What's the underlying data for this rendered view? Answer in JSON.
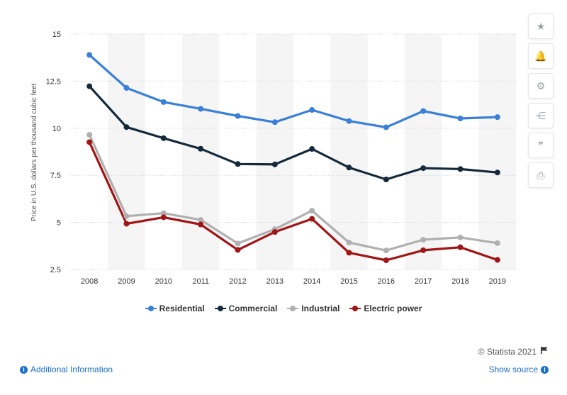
{
  "chart_data": {
    "type": "line",
    "title": "",
    "xlabel": "",
    "ylabel": "Price in U.S. dollars per thousand cubic feet",
    "categories": [
      "2008",
      "2009",
      "2010",
      "2011",
      "2012",
      "2013",
      "2014",
      "2015",
      "2016",
      "2017",
      "2018",
      "2019"
    ],
    "y_ticks": [
      "2.5",
      "5",
      "7.5",
      "10",
      "12.5",
      "15"
    ],
    "ylim": [
      2.5,
      15
    ],
    "grid": true,
    "legend_position": "bottom",
    "series": [
      {
        "name": "Residential",
        "color": "#3a80d9",
        "values": [
          13.89,
          12.14,
          11.39,
          11.03,
          10.65,
          10.32,
          10.97,
          10.38,
          10.05,
          10.91,
          10.52,
          10.59
        ]
      },
      {
        "name": "Commercial",
        "color": "#142a3b",
        "values": [
          12.23,
          10.06,
          9.47,
          8.91,
          8.1,
          8.08,
          8.9,
          7.91,
          7.28,
          7.88,
          7.83,
          7.65
        ]
      },
      {
        "name": "Industrial",
        "color": "#b0b0b0",
        "values": [
          9.65,
          5.33,
          5.49,
          5.13,
          3.88,
          4.64,
          5.62,
          3.93,
          3.51,
          4.08,
          4.2,
          3.9
        ]
      },
      {
        "name": "Electric power",
        "color": "#a01515",
        "values": [
          9.26,
          4.93,
          5.27,
          4.89,
          3.54,
          4.49,
          5.19,
          3.39,
          2.99,
          3.52,
          3.68,
          3.01
        ]
      }
    ]
  },
  "sidebar": {
    "buttons": [
      {
        "name": "star",
        "glyph": "★"
      },
      {
        "name": "bell",
        "glyph": "🔔"
      },
      {
        "name": "gear",
        "glyph": "⚙"
      },
      {
        "name": "share",
        "glyph": "⋲"
      },
      {
        "name": "quote",
        "glyph": "❞"
      },
      {
        "name": "print",
        "glyph": "⎙"
      }
    ]
  },
  "footer": {
    "credit": "© Statista 2021",
    "additional_info": "Additional Information",
    "show_source": "Show source"
  }
}
